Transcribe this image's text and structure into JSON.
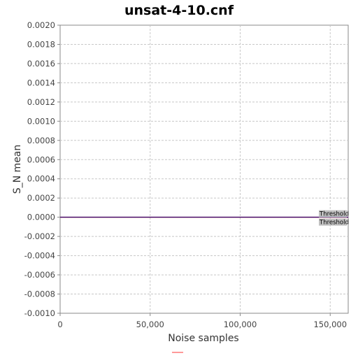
{
  "chart_data": {
    "type": "line",
    "title": "unsat-4-10.cnf",
    "xlabel": "Noise samples",
    "ylabel": "S_N mean",
    "xlim": [
      0,
      160000
    ],
    "ylim": [
      -0.001,
      0.002
    ],
    "x_ticks": [
      0,
      50000,
      100000,
      150000
    ],
    "x_tick_labels": [
      "0",
      "50,000",
      "100,000",
      "150,000"
    ],
    "y_ticks": [
      -0.001,
      -0.0008,
      -0.0006,
      -0.0004,
      -0.0002,
      0,
      0.0002,
      0.0004,
      0.0006,
      0.0008,
      0.001,
      0.0012,
      0.0014,
      0.0016,
      0.0018,
      0.002
    ],
    "y_tick_labels": [
      "-0.0010",
      "-0.0008",
      "-0.0006",
      "-0.0004",
      "-0.0002",
      "0.0000",
      "0.0002",
      "0.0004",
      "0.0006",
      "0.0008",
      "0.0010",
      "0.0012",
      "0.0014",
      "0.0016",
      "0.0018",
      "0.0020"
    ],
    "grid": true,
    "series": [
      {
        "x": [
          0,
          160000
        ],
        "values": [
          0,
          0
        ],
        "color": "#ff3333"
      },
      {
        "x": [
          0,
          160000
        ],
        "values": [
          0,
          0
        ],
        "color": "#000080"
      }
    ],
    "annotations": [
      {
        "text": "Threshold",
        "y": 0
      },
      {
        "text": "Threshold",
        "y": 0
      }
    ],
    "legend_swatch_color": "#ff9999"
  }
}
